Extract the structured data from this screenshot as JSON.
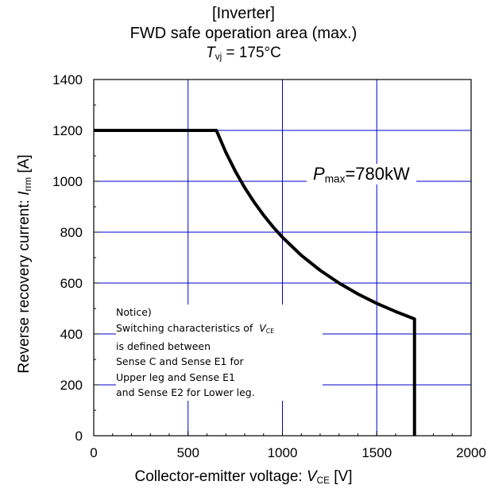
{
  "chart_data": {
    "type": "line",
    "title": "[Inverter]",
    "subtitle": "FWD safe operation area (max.)",
    "condition": {
      "symbol": "T",
      "sub": "vj",
      "value": "= 175°C"
    },
    "xlabel": {
      "text": "Collector-emitter voltage:  ",
      "symbol": "V",
      "sub": "CE",
      "unit": " [V]"
    },
    "ylabel": {
      "text": "Reverse recovery current:  ",
      "symbol": "I",
      "sub": "rrm",
      "unit": "  [A]"
    },
    "xlim": [
      0,
      2000
    ],
    "ylim": [
      0,
      1400
    ],
    "xticks": [
      0,
      500,
      1000,
      1500,
      2000
    ],
    "yticks": [
      0,
      200,
      400,
      600,
      800,
      1000,
      1200,
      1400
    ],
    "grid": true,
    "grid_color": "#0000cc",
    "line_color": "#000000",
    "series": [
      {
        "x": [
          0,
          650,
          700,
          750,
          800,
          850,
          900,
          950,
          1000,
          1100,
          1200,
          1300,
          1400,
          1500,
          1600,
          1700,
          1700,
          1700
        ],
        "y": [
          1200,
          1200,
          1114,
          1040,
          975,
          918,
          867,
          821,
          780,
          709,
          650,
          600,
          557,
          520,
          488,
          459,
          459,
          0
        ]
      }
    ],
    "annotations": {
      "pmax": {
        "symbol": "P",
        "sub": "max",
        "value": "=780kW"
      },
      "notice": [
        "Notice)",
        "Switching characteristics of",
        "is defined between",
        "Sense C and Sense E1 for",
        "Upper leg  and Sense  E1",
        "and Sense E2 for Lower leg."
      ],
      "notice_symbol": {
        "symbol": "V",
        "sub": "CE"
      }
    }
  }
}
